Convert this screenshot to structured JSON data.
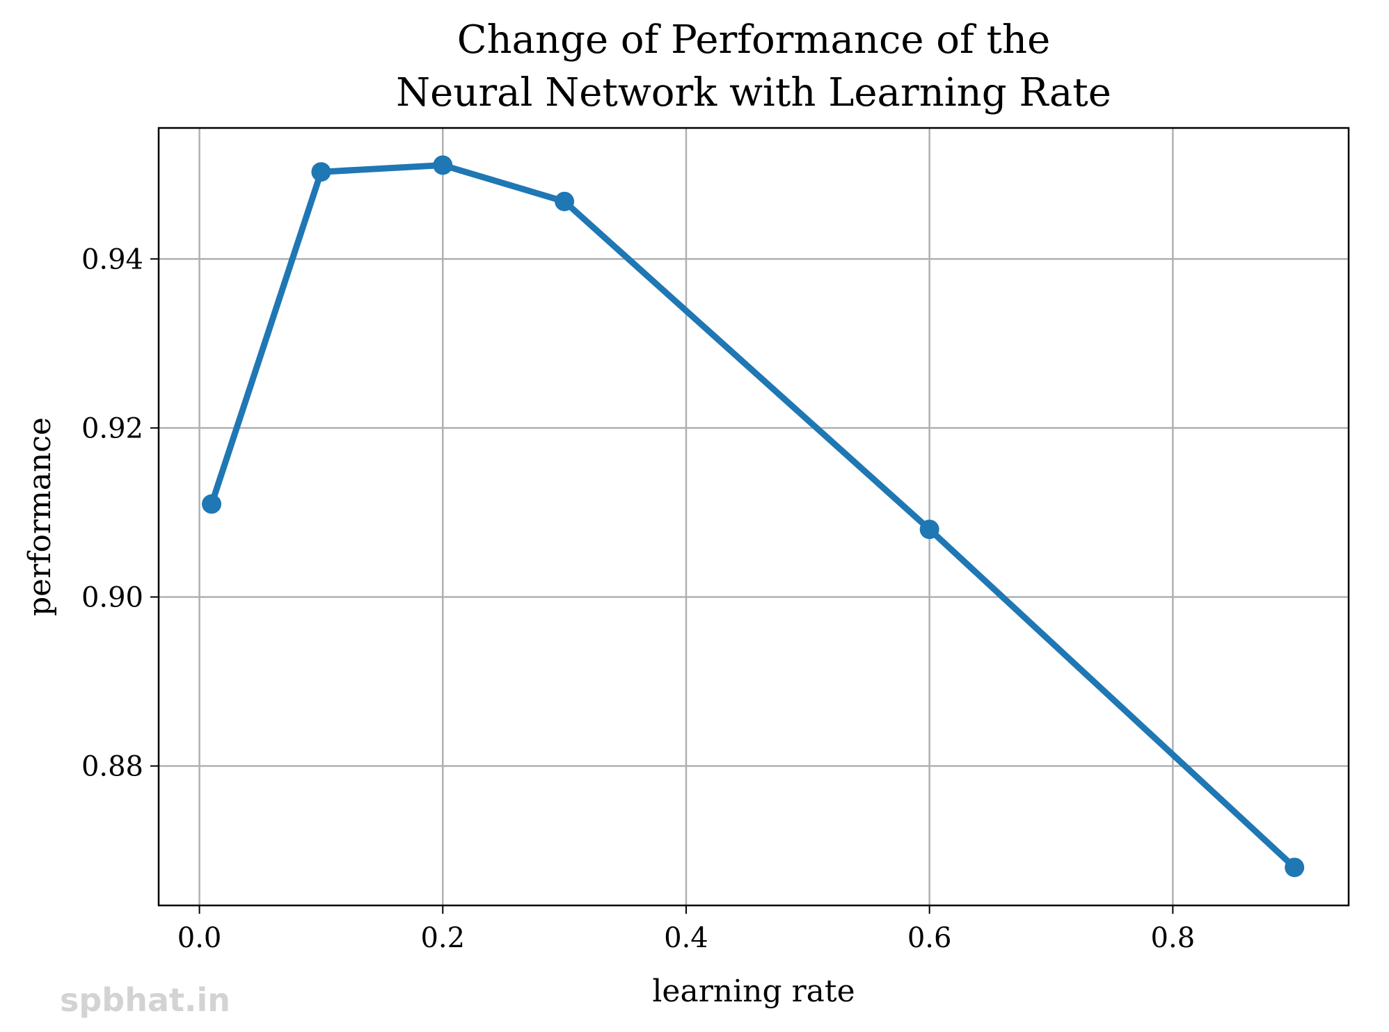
{
  "chart_data": {
    "type": "line",
    "title": [
      "Change of Performance of the",
      "Neural Network with Learning Rate"
    ],
    "xlabel": "learning rate",
    "ylabel": "performance",
    "xlim": [
      -0.0335,
      0.9445
    ],
    "ylim": [
      0.8635,
      0.9555
    ],
    "x_ticks": [
      0.0,
      0.2,
      0.4,
      0.6,
      0.8
    ],
    "x_tick_labels": [
      "0.0",
      "0.2",
      "0.4",
      "0.6",
      "0.8"
    ],
    "y_ticks": [
      0.88,
      0.9,
      0.92,
      0.94
    ],
    "y_tick_labels": [
      "0.88",
      "0.90",
      "0.92",
      "0.94"
    ],
    "grid": true,
    "legend": "none",
    "series": [
      {
        "color": "#1f77b4",
        "marker": "circle",
        "x": [
          0.01,
          0.1,
          0.2,
          0.3,
          0.6,
          0.9
        ],
        "y": [
          0.911,
          0.9503,
          0.9511,
          0.9468,
          0.908,
          0.868
        ]
      }
    ]
  },
  "watermark": "spbhat.in"
}
